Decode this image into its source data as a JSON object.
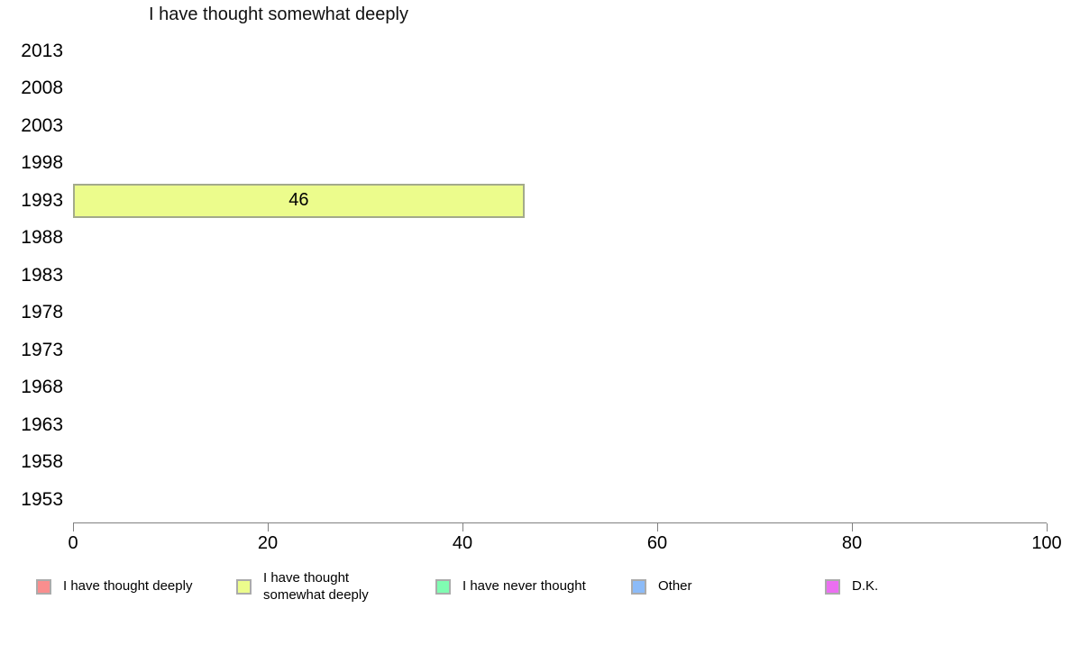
{
  "chart_data": {
    "type": "bar",
    "orientation": "horizontal",
    "title": "I have thought somewhat deeply",
    "categories": [
      "2013",
      "2008",
      "2003",
      "1998",
      "1993",
      "1988",
      "1983",
      "1978",
      "1973",
      "1968",
      "1963",
      "1958",
      "1953"
    ],
    "values": [
      null,
      null,
      null,
      null,
      46,
      null,
      null,
      null,
      null,
      null,
      null,
      null,
      null
    ],
    "xlabel": "",
    "ylabel": "",
    "xlim": [
      0,
      100
    ],
    "x_ticks": [
      0,
      20,
      40,
      60,
      80,
      100
    ],
    "grid": false,
    "bar_color": "#ECFC8C",
    "bar_border_color": "#A3AA8B",
    "axis_color": "#808080",
    "legend_position": "bottom",
    "legend": [
      {
        "label": "I have thought deeply",
        "color": "#F98E8E"
      },
      {
        "label": "I have thought somewhat deeply",
        "color": "#ECFC8C"
      },
      {
        "label": "I have never thought",
        "color": "#80FCB2"
      },
      {
        "label": "Other",
        "color": "#8CBBF8"
      },
      {
        "label": "D.K.",
        "color": "#EB6FF1"
      }
    ]
  }
}
